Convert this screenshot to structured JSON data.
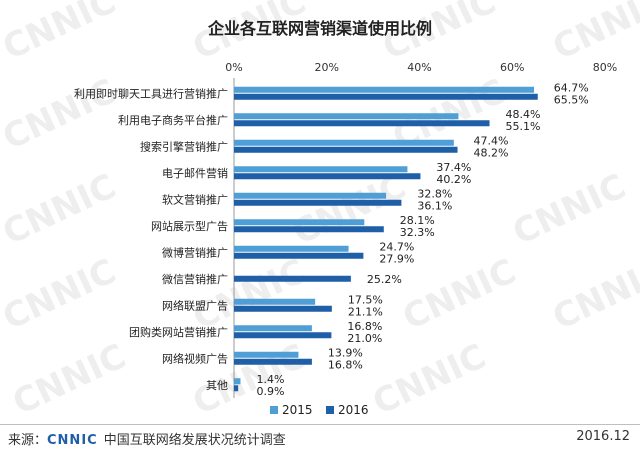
{
  "watermark_text": "CNNIC",
  "chart_data": {
    "type": "bar",
    "orientation": "horizontal",
    "title": "企业各互联网营销渠道使用比例",
    "categories": [
      "利用即时聊天工具进行营销推广",
      "利用电子商务平台推广",
      "搜索引擎营销推广",
      "电子邮件营销",
      "软文营销推广",
      "网站展示型广告",
      "微博营销推广",
      "微信营销推广",
      "网络联盟广告",
      "团购类网站营销推广",
      "网络视频广告",
      "其他"
    ],
    "series": [
      {
        "name": "2015",
        "color": "#4f9fd6",
        "values": [
          64.7,
          48.4,
          47.4,
          37.4,
          32.8,
          28.1,
          24.7,
          null,
          17.5,
          16.8,
          13.9,
          1.4
        ]
      },
      {
        "name": "2016",
        "color": "#1f5fa8",
        "values": [
          65.5,
          55.1,
          48.2,
          40.2,
          36.1,
          32.3,
          27.9,
          25.2,
          21.1,
          21.0,
          16.8,
          0.9
        ]
      }
    ],
    "x_ticks": [
      "0%",
      "20%",
      "40%",
      "60%",
      "80%"
    ],
    "xlim": [
      0,
      80
    ],
    "value_suffix": "%",
    "legend_position": "bottom",
    "grid": false
  },
  "footer": {
    "source_label": "来源：",
    "logo": "CNNIC",
    "survey": "中国互联网络发展状况统计调查",
    "date": "2016.12"
  }
}
